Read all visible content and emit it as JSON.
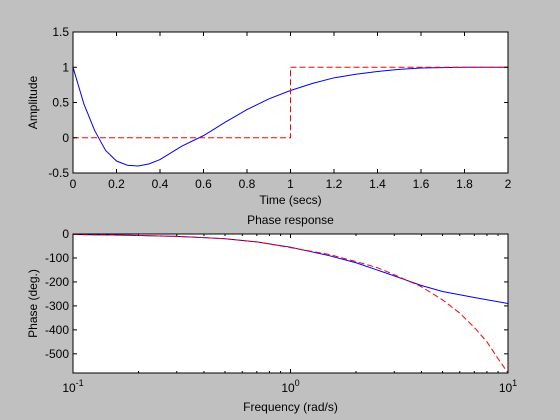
{
  "figure": {
    "background": "#c0c0c0"
  },
  "chart_data": [
    {
      "type": "line",
      "title": "",
      "xlabel": "Time (secs)",
      "ylabel": "Amplitude",
      "xlim": [
        0,
        2
      ],
      "ylim": [
        -0.5,
        1.5
      ],
      "x_ticks": [
        0,
        0.2,
        0.4,
        0.6,
        0.8,
        1,
        1.2,
        1.4,
        1.6,
        1.8,
        2
      ],
      "x_tick_labels": [
        "0",
        "0.2",
        "0.4",
        "0.6",
        "0.8",
        "1",
        "1.2",
        "1.4",
        "1.6",
        "1.8",
        "2"
      ],
      "y_ticks": [
        -0.5,
        0,
        0.5,
        1,
        1.5
      ],
      "y_tick_labels": [
        "-0.5",
        "0",
        "0.5",
        "1",
        "1.5"
      ],
      "grid": false,
      "series": [
        {
          "color": "#0000ff",
          "dash": "solid",
          "x": [
            0,
            0.05,
            0.1,
            0.15,
            0.2,
            0.25,
            0.3,
            0.35,
            0.4,
            0.5,
            0.6,
            0.7,
            0.8,
            0.9,
            1.0,
            1.1,
            1.2,
            1.3,
            1.4,
            1.5,
            1.6,
            1.7,
            1.8,
            1.9,
            2.0
          ],
          "y": [
            1.0,
            0.48,
            0.1,
            -0.18,
            -0.33,
            -0.39,
            -0.4,
            -0.37,
            -0.31,
            -0.12,
            0.03,
            0.22,
            0.4,
            0.55,
            0.67,
            0.77,
            0.85,
            0.9,
            0.94,
            0.97,
            0.99,
            0.995,
            1.0,
            1.0,
            1.0
          ]
        },
        {
          "color": "#ff0000",
          "dash": "dashed",
          "x": [
            0,
            1,
            1,
            2
          ],
          "y": [
            0,
            0,
            1,
            1
          ]
        }
      ]
    },
    {
      "type": "line",
      "title": "Phase response",
      "xlabel": "Frequency (rad/s)",
      "ylabel": "Phase (deg.)",
      "xscale": "log",
      "xlim": [
        0.1,
        10
      ],
      "ylim": [
        -580,
        0
      ],
      "x_ticks": [
        0.1,
        1,
        10
      ],
      "x_tick_labels": [
        {
          "base": "10",
          "exp": "-1"
        },
        {
          "base": "10",
          "exp": "0"
        },
        {
          "base": "10",
          "exp": "1"
        }
      ],
      "y_ticks": [
        0,
        -100,
        -200,
        -300,
        -400,
        -500
      ],
      "y_tick_labels": [
        "0",
        "-100",
        "-200",
        "-300",
        "-400",
        "-500"
      ],
      "grid": false,
      "series": [
        {
          "color": "#0000ff",
          "dash": "solid",
          "x": [
            0.1,
            0.15,
            0.2,
            0.3,
            0.4,
            0.5,
            0.7,
            1.0,
            1.5,
            2.0,
            2.5,
            3.0,
            4.0,
            5.0,
            7.0,
            10.0
          ],
          "y": [
            -2,
            -4,
            -6,
            -10,
            -15,
            -20,
            -33,
            -55,
            -90,
            -120,
            -150,
            -175,
            -215,
            -240,
            -265,
            -290
          ]
        },
        {
          "color": "#ff0000",
          "dash": "dashed",
          "x": [
            0.1,
            0.15,
            0.2,
            0.3,
            0.4,
            0.5,
            0.7,
            1.0,
            1.5,
            2.0,
            2.5,
            3.0,
            4.0,
            5.0,
            6.0,
            7.0,
            8.0,
            9.0,
            10.0
          ],
          "y": [
            -2,
            -4,
            -6,
            -10,
            -15,
            -20,
            -33,
            -57,
            -85,
            -115,
            -140,
            -170,
            -220,
            -275,
            -330,
            -390,
            -450,
            -520,
            -580
          ]
        }
      ]
    }
  ]
}
